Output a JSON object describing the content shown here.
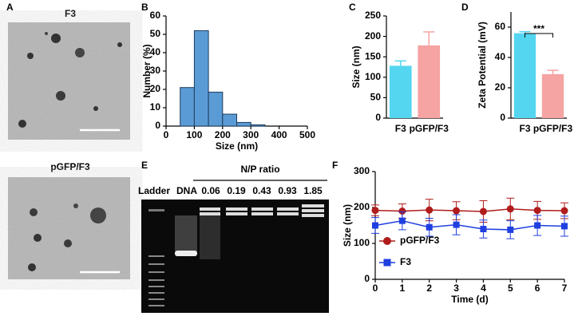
{
  "panel_a": {
    "panel": "A",
    "images": [
      {
        "label": "F3"
      },
      {
        "label": "pGFP/F3"
      }
    ]
  },
  "panel_e": {
    "panel": "E",
    "header": "N/P ratio",
    "lanes": [
      "Ladder",
      "DNA",
      "0.06",
      "0.19",
      "0.43",
      "0.93",
      "1.85"
    ]
  },
  "chart_data": [
    {
      "panel": "B",
      "type": "histogram",
      "xlabel": "Size (nm)",
      "ylabel": "Number (%)",
      "bins": [
        50,
        100,
        150,
        200,
        250,
        300,
        350
      ],
      "values": [
        21,
        52,
        18.5,
        6.5,
        2,
        0.7
      ],
      "color": "#5b9bd5",
      "xlim": [
        0,
        500
      ],
      "xticks": [
        0,
        100,
        200,
        300,
        400,
        500
      ],
      "ylim": [
        0,
        60
      ],
      "yticks": [
        0,
        10,
        20,
        30,
        40,
        50,
        60
      ]
    },
    {
      "panel": "C",
      "type": "bar",
      "ylabel": "Size (nm)",
      "categories": [
        "F3",
        "pGFP/F3"
      ],
      "values": [
        128,
        178
      ],
      "errors": [
        12,
        33
      ],
      "colors": [
        "#55d6f0",
        "#f5a3a3"
      ],
      "ylim": [
        0,
        250
      ],
      "yticks": [
        0,
        50,
        100,
        150,
        200,
        250
      ]
    },
    {
      "panel": "D",
      "type": "bar",
      "ylabel": "Zeta Potential (mV)",
      "categories": [
        "F3",
        "pGFP/F3"
      ],
      "values": [
        56,
        29
      ],
      "errors": [
        1,
        2.5
      ],
      "colors": [
        "#55d6f0",
        "#f5a3a3"
      ],
      "annotation": "***",
      "ylim": [
        0,
        70
      ],
      "yticks": [
        0,
        20,
        40,
        60
      ]
    },
    {
      "panel": "F",
      "type": "line",
      "xlabel": "Time (d)",
      "ylabel": "Size (nm)",
      "legend": "lower left",
      "x": [
        0,
        1,
        2,
        3,
        4,
        5,
        6,
        7
      ],
      "series": [
        {
          "name": "pGFP/F3",
          "color": "#b01c1c",
          "marker": "circle",
          "values": [
            192,
            190,
            193,
            191,
            189,
            196,
            192,
            191
          ],
          "errors": [
            15,
            20,
            30,
            25,
            30,
            30,
            25,
            22
          ]
        },
        {
          "name": "F3",
          "color": "#1f3fe0",
          "marker": "square",
          "values": [
            150,
            163,
            145,
            152,
            140,
            138,
            150,
            148
          ],
          "errors": [
            22,
            25,
            25,
            28,
            25,
            25,
            28,
            28
          ]
        }
      ],
      "xlim": [
        0,
        7
      ],
      "xticks": [
        0,
        1,
        2,
        3,
        4,
        5,
        6,
        7
      ],
      "ylim": [
        0,
        300
      ],
      "yticks": [
        0,
        100,
        200,
        300
      ]
    }
  ]
}
